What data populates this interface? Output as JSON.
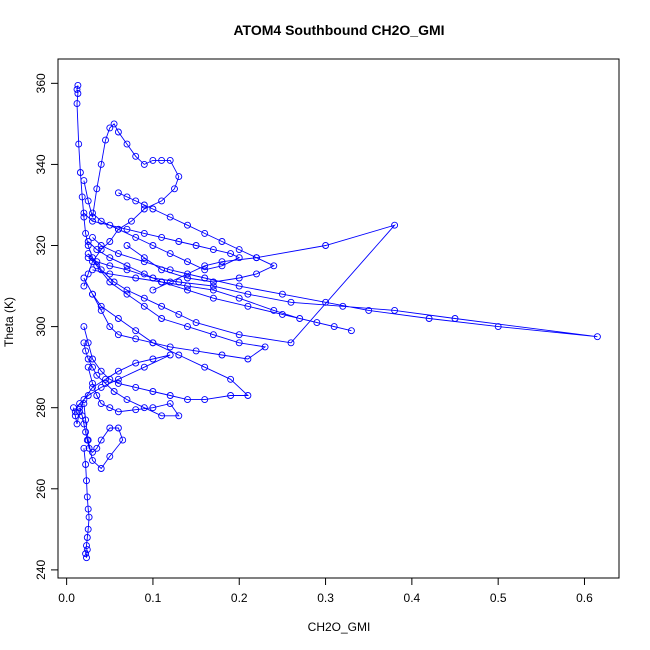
{
  "chart_data": {
    "type": "line",
    "title": "ATOM4 Southbound CH2O_GMI",
    "xlabel": "CH2O_GMI",
    "ylabel": "Theta (K)",
    "xlim": [
      -0.01,
      0.64
    ],
    "ylim": [
      238,
      366
    ],
    "x_ticks": [
      0.0,
      0.1,
      0.2,
      0.3,
      0.4,
      0.5,
      0.6
    ],
    "x_tick_labels": [
      "0.0",
      "0.1",
      "0.2",
      "0.3",
      "0.4",
      "0.5",
      "0.6"
    ],
    "y_ticks": [
      240,
      260,
      280,
      300,
      320,
      340,
      360
    ],
    "y_tick_labels": [
      "240",
      "260",
      "280",
      "300",
      "320",
      "340",
      "360"
    ],
    "grid": false,
    "marker": "open-circle",
    "color": "#0000ff",
    "series": [
      {
        "x": [
          0.013,
          0.012,
          0.013,
          0.012,
          0.014,
          0.016,
          0.018,
          0.02,
          0.022,
          0.025,
          0.03,
          0.04,
          0.055,
          0.07,
          0.09,
          0.11,
          0.13,
          0.15,
          0.2,
          0.26,
          0.38,
          0.3,
          0.22,
          0.18,
          0.16,
          0.14,
          0.12,
          0.1
        ],
        "y": [
          359.5,
          358.5,
          357.5,
          355,
          345,
          338,
          332,
          327,
          323,
          320,
          317,
          314,
          311,
          309,
          307,
          305,
          303,
          301,
          298,
          296,
          325,
          320,
          317,
          316,
          315,
          313,
          311,
          309
        ]
      },
      {
        "x": [
          0.02,
          0.025,
          0.03,
          0.035,
          0.04,
          0.045,
          0.05,
          0.055,
          0.06,
          0.07,
          0.08,
          0.09,
          0.1,
          0.11,
          0.12,
          0.13,
          0.125,
          0.11,
          0.09,
          0.075,
          0.06,
          0.05,
          0.04,
          0.03,
          0.025,
          0.02
        ],
        "y": [
          336,
          331,
          327,
          334,
          340,
          346,
          349,
          350,
          348,
          345,
          342,
          340,
          341,
          341,
          341,
          337,
          334,
          331,
          329,
          326,
          324,
          321,
          319,
          316,
          313,
          310
        ]
      },
      {
        "x": [
          0.03,
          0.05,
          0.08,
          0.11,
          0.14,
          0.17,
          0.2,
          0.24,
          0.27,
          0.31,
          0.33,
          0.29,
          0.25,
          0.21,
          0.17,
          0.14,
          0.11,
          0.09,
          0.07,
          0.05,
          0.035,
          0.025
        ],
        "y": [
          314,
          313,
          312,
          311,
          310,
          309,
          307,
          304,
          302,
          300,
          299,
          301,
          303,
          305,
          307,
          309,
          311,
          313,
          315,
          317,
          319,
          321
        ]
      },
      {
        "x": [
          0.025,
          0.035,
          0.05,
          0.07,
          0.1,
          0.13,
          0.17,
          0.21,
          0.26,
          0.32,
          0.38,
          0.45,
          0.615,
          0.5,
          0.42,
          0.35,
          0.3,
          0.25,
          0.2,
          0.16,
          0.12,
          0.09,
          0.06,
          0.04,
          0.03
        ],
        "y": [
          317,
          316,
          315,
          314,
          312,
          311,
          310,
          308,
          306,
          305,
          304,
          302,
          297.5,
          300,
          302,
          304,
          306,
          308,
          310,
          312,
          314,
          316,
          318,
          320,
          322
        ]
      },
      {
        "x": [
          0.02,
          0.03,
          0.04,
          0.05,
          0.06,
          0.08,
          0.1,
          0.12,
          0.15,
          0.18,
          0.21,
          0.23,
          0.2,
          0.17,
          0.14,
          0.11,
          0.09,
          0.07,
          0.05,
          0.035,
          0.025
        ],
        "y": [
          312,
          308,
          304,
          300,
          298,
          297,
          296,
          295,
          294,
          293,
          292,
          295,
          296,
          298,
          300,
          302,
          305,
          308,
          311,
          315,
          318
        ]
      },
      {
        "x": [
          0.02,
          0.025,
          0.03,
          0.04,
          0.05,
          0.06,
          0.08,
          0.1,
          0.12,
          0.14,
          0.16,
          0.19,
          0.21,
          0.19,
          0.16,
          0.13,
          0.1,
          0.08,
          0.06,
          0.04,
          0.03
        ],
        "y": [
          300,
          296,
          292,
          289,
          287,
          286,
          285,
          284,
          283,
          282,
          282,
          283,
          283,
          287,
          290,
          293,
          296,
          299,
          302,
          305,
          308
        ]
      },
      {
        "x": [
          0.025,
          0.03,
          0.035,
          0.04,
          0.05,
          0.06,
          0.08,
          0.1,
          0.12,
          0.13,
          0.11,
          0.09,
          0.07,
          0.055,
          0.045,
          0.035,
          0.03,
          0.025,
          0.022,
          0.02
        ],
        "y": [
          290,
          286,
          283,
          281,
          280,
          279,
          279.5,
          280,
          281,
          278,
          278,
          280,
          282,
          284,
          286,
          288,
          290,
          292,
          294,
          296
        ]
      },
      {
        "x": [
          0.015,
          0.018,
          0.02,
          0.022,
          0.024,
          0.026,
          0.03,
          0.035,
          0.04,
          0.05,
          0.06,
          0.065,
          0.05,
          0.04,
          0.03,
          0.025,
          0.022,
          0.02
        ],
        "y": [
          280,
          278,
          276,
          274,
          272,
          270,
          269,
          270,
          272,
          275,
          275,
          272,
          268,
          265,
          267,
          272,
          277,
          281
        ]
      },
      {
        "x": [
          0.02,
          0.022,
          0.023,
          0.024,
          0.025,
          0.026,
          0.025,
          0.024,
          0.023,
          0.022,
          0.023,
          0.024
        ],
        "y": [
          270,
          266,
          262,
          258,
          255,
          253,
          250,
          248,
          246,
          244,
          243,
          245
        ]
      },
      {
        "x": [
          0.02,
          0.03,
          0.05,
          0.07,
          0.09,
          0.11,
          0.13,
          0.15,
          0.17,
          0.19,
          0.2,
          0.18,
          0.16,
          0.14,
          0.12,
          0.1,
          0.08,
          0.06,
          0.04,
          0.03
        ],
        "y": [
          328,
          326,
          325,
          324,
          323,
          322,
          321,
          320,
          319,
          318,
          317,
          315,
          314,
          316,
          318,
          320,
          322,
          324,
          326,
          328
        ]
      },
      {
        "x": [
          0.008,
          0.01,
          0.012,
          0.015,
          0.02,
          0.03,
          0.045,
          0.06,
          0.08,
          0.1,
          0.12,
          0.09,
          0.06,
          0.04,
          0.025,
          0.015,
          0.01
        ],
        "y": [
          280,
          278,
          276,
          279,
          282,
          285,
          287,
          289,
          291,
          292,
          293,
          290,
          287,
          285,
          283,
          281,
          279
        ]
      },
      {
        "x": [
          0.06,
          0.07,
          0.08,
          0.09,
          0.1,
          0.12,
          0.14,
          0.16,
          0.18,
          0.2,
          0.22,
          0.24,
          0.22,
          0.2,
          0.17,
          0.14,
          0.11,
          0.09,
          0.07
        ],
        "y": [
          333,
          332,
          331,
          330,
          329,
          327,
          325,
          323,
          321,
          319,
          317,
          315,
          313,
          312,
          311,
          312,
          314,
          317,
          320
        ]
      }
    ]
  }
}
